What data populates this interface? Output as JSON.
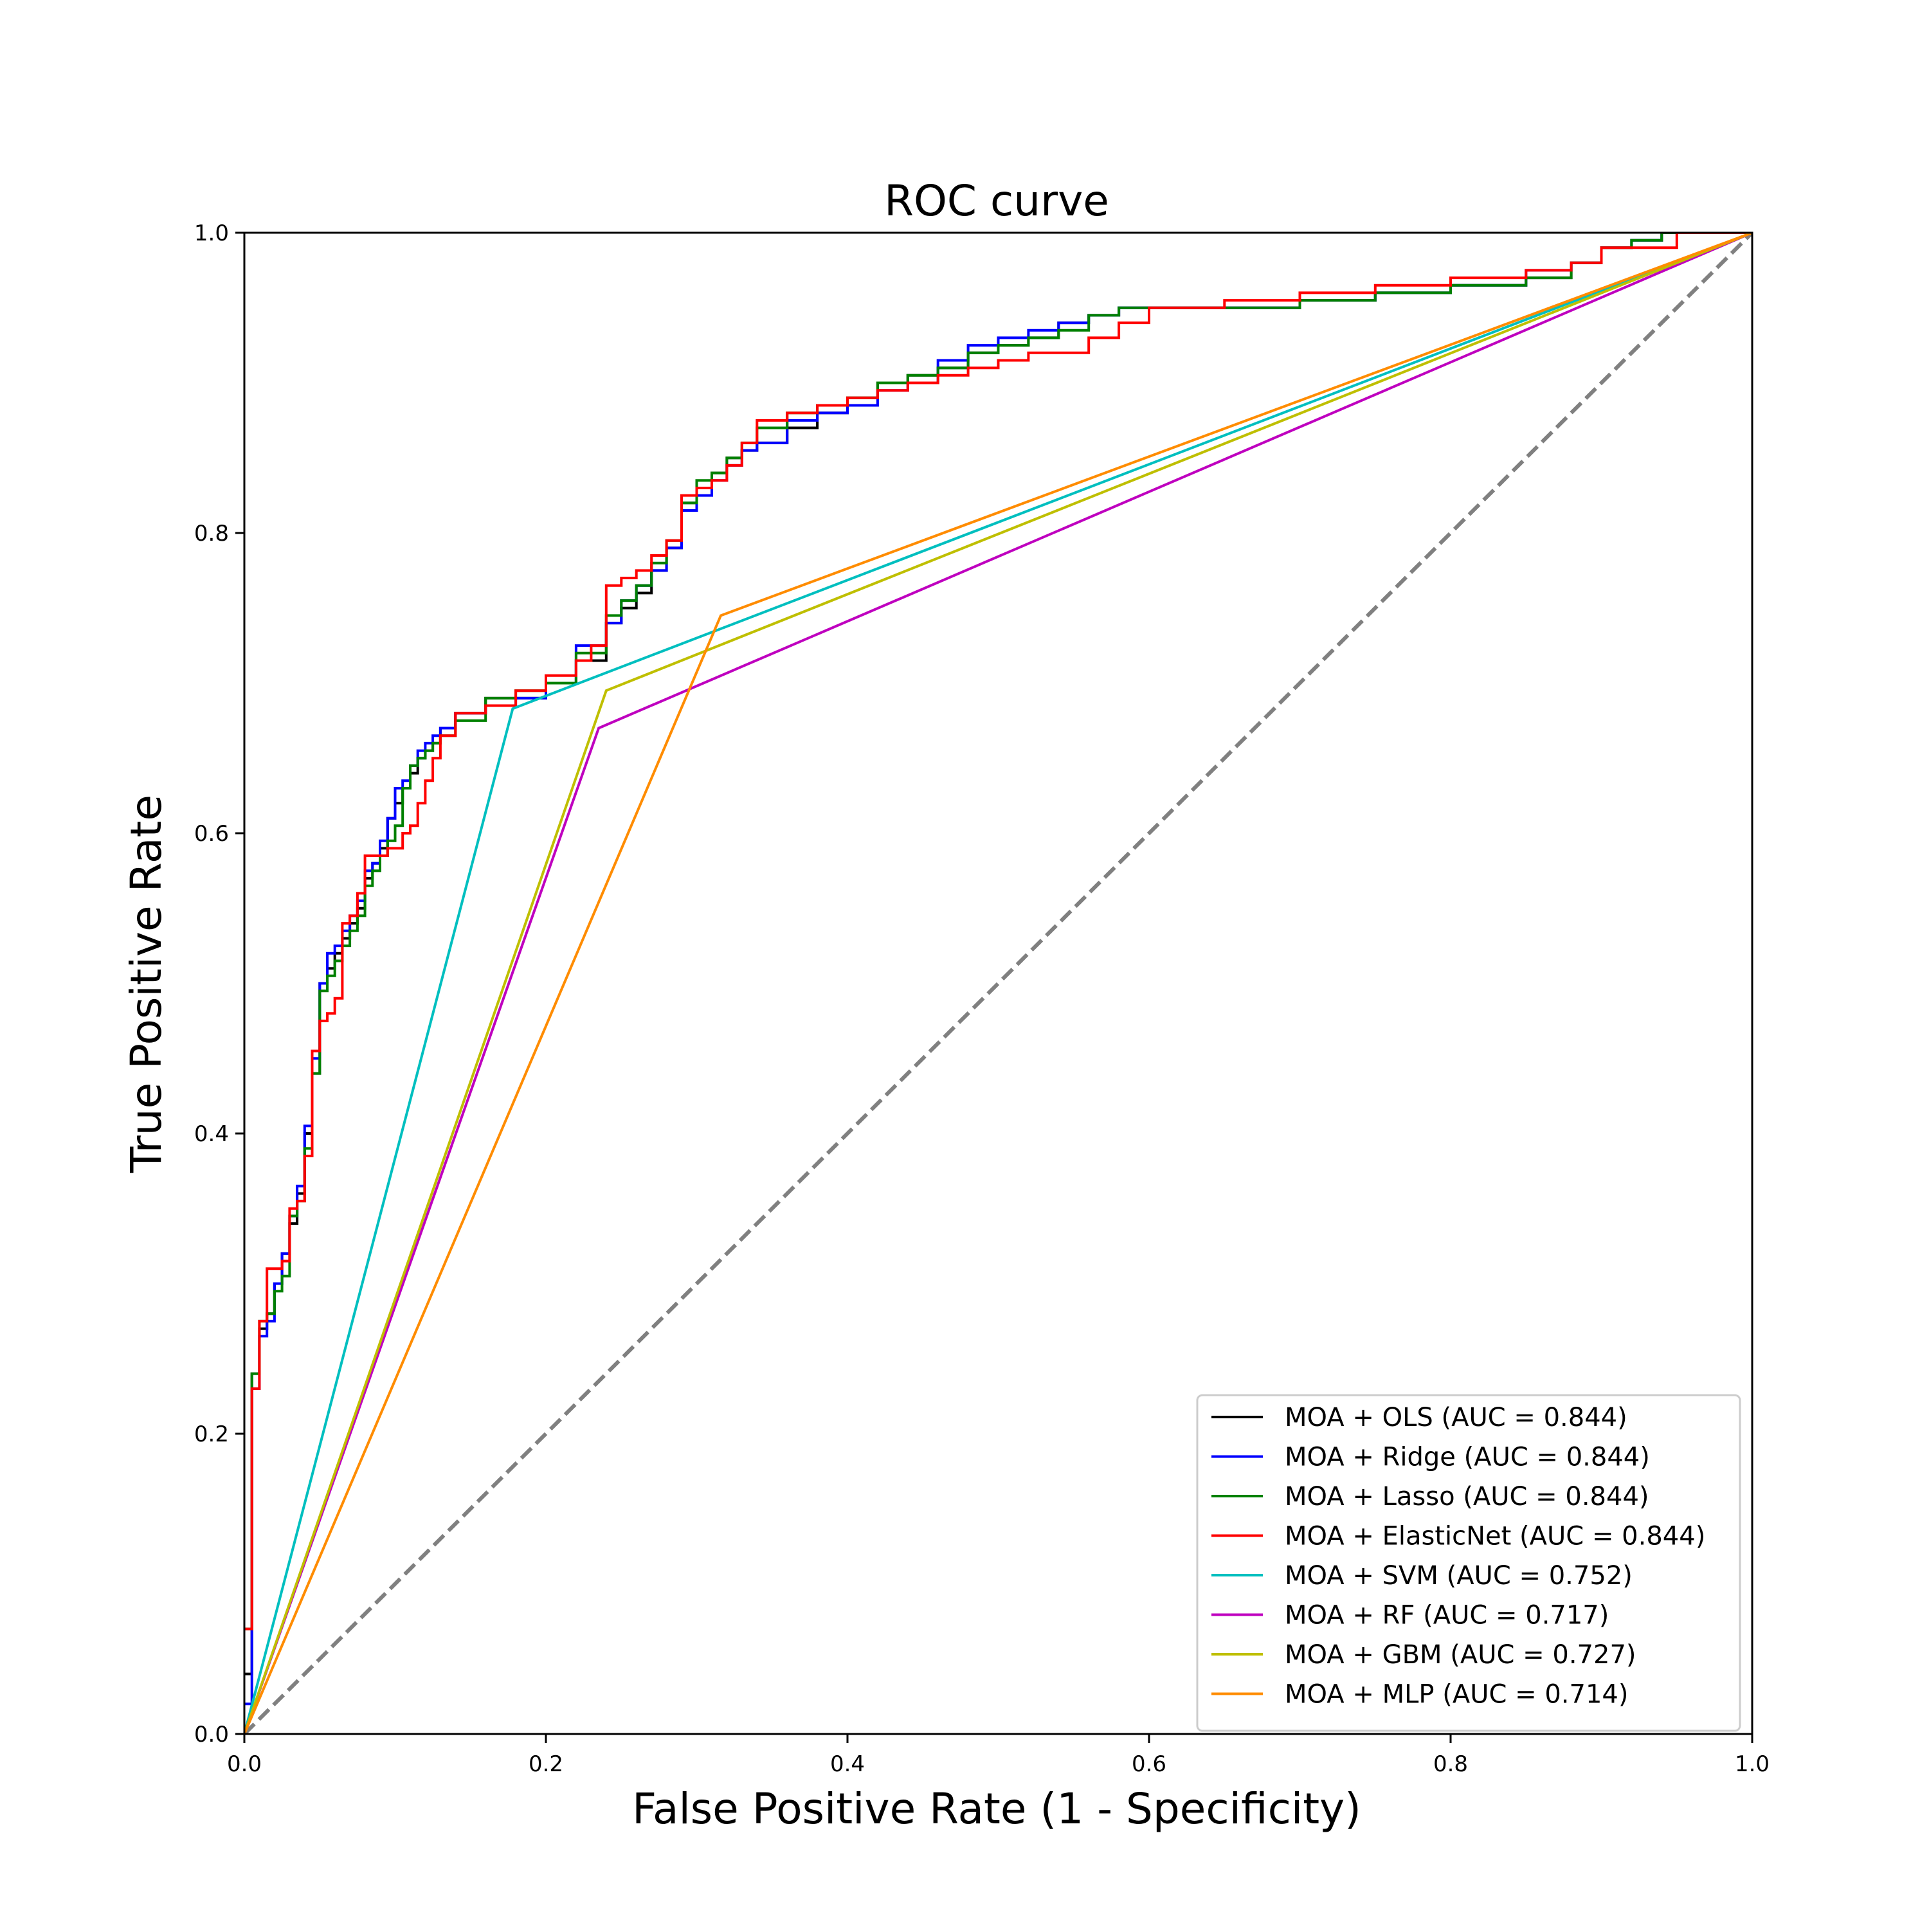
{
  "chart_data": {
    "type": "line",
    "title": "ROC curve",
    "xlabel": "False Positive Rate (1 - Specificity)",
    "ylabel": "True Positive Rate",
    "xlim": [
      0.0,
      1.0
    ],
    "ylim": [
      0.0,
      1.0
    ],
    "xticks": [
      "0.0",
      "0.2",
      "0.4",
      "0.6",
      "0.8",
      "1.0"
    ],
    "yticks": [
      "0.0",
      "0.2",
      "0.4",
      "0.6",
      "0.8",
      "1.0"
    ],
    "grid": false,
    "legend_position": "lower-right",
    "diagonal": {
      "x": [
        0,
        1
      ],
      "y": [
        0,
        1
      ],
      "color": "#808080",
      "style": "dashed"
    },
    "series": [
      {
        "name": "MOA + OLS (AUC = 0.844)",
        "color": "#000000",
        "step": true,
        "x": [
          0,
          0.005,
          0.01,
          0.015,
          0.02,
          0.025,
          0.03,
          0.035,
          0.04,
          0.045,
          0.05,
          0.055,
          0.06,
          0.065,
          0.07,
          0.075,
          0.08,
          0.085,
          0.09,
          0.095,
          0.1,
          0.105,
          0.11,
          0.115,
          0.12,
          0.125,
          0.13,
          0.14,
          0.16,
          0.18,
          0.2,
          0.22,
          0.24,
          0.25,
          0.26,
          0.27,
          0.28,
          0.29,
          0.3,
          0.31,
          0.32,
          0.33,
          0.34,
          0.36,
          0.38,
          0.4,
          0.42,
          0.44,
          0.46,
          0.48,
          0.5,
          0.52,
          0.54,
          0.56,
          0.58,
          0.6,
          0.65,
          0.7,
          0.75,
          0.8,
          0.85,
          0.88,
          0.9,
          0.92,
          0.94,
          1.0
        ],
        "y": [
          0.04,
          0.24,
          0.27,
          0.28,
          0.3,
          0.32,
          0.34,
          0.36,
          0.4,
          0.44,
          0.5,
          0.51,
          0.52,
          0.53,
          0.54,
          0.55,
          0.57,
          0.58,
          0.59,
          0.61,
          0.62,
          0.63,
          0.64,
          0.65,
          0.655,
          0.66,
          0.67,
          0.68,
          0.69,
          0.69,
          0.7,
          0.715,
          0.74,
          0.75,
          0.76,
          0.775,
          0.79,
          0.82,
          0.83,
          0.84,
          0.85,
          0.855,
          0.86,
          0.87,
          0.88,
          0.89,
          0.9,
          0.905,
          0.91,
          0.92,
          0.925,
          0.93,
          0.94,
          0.945,
          0.95,
          0.95,
          0.95,
          0.955,
          0.96,
          0.965,
          0.97,
          0.98,
          0.99,
          0.995,
          1.0,
          1.0
        ]
      },
      {
        "name": "MOA + Ridge (AUC = 0.844)",
        "color": "#0000ff",
        "step": true,
        "x": [
          0,
          0.005,
          0.01,
          0.015,
          0.02,
          0.025,
          0.03,
          0.035,
          0.04,
          0.045,
          0.05,
          0.055,
          0.06,
          0.065,
          0.07,
          0.075,
          0.08,
          0.085,
          0.09,
          0.095,
          0.1,
          0.105,
          0.11,
          0.115,
          0.12,
          0.125,
          0.13,
          0.14,
          0.16,
          0.18,
          0.2,
          0.22,
          0.24,
          0.25,
          0.26,
          0.27,
          0.28,
          0.29,
          0.3,
          0.31,
          0.32,
          0.33,
          0.34,
          0.36,
          0.38,
          0.4,
          0.42,
          0.44,
          0.46,
          0.48,
          0.5,
          0.52,
          0.54,
          0.56,
          0.58,
          0.6,
          0.65,
          0.7,
          0.75,
          0.8,
          0.85,
          0.88,
          0.9,
          0.92,
          0.94,
          1.0
        ],
        "y": [
          0.02,
          0.23,
          0.265,
          0.275,
          0.3,
          0.32,
          0.345,
          0.365,
          0.405,
          0.45,
          0.5,
          0.52,
          0.525,
          0.535,
          0.545,
          0.555,
          0.575,
          0.58,
          0.595,
          0.61,
          0.63,
          0.635,
          0.645,
          0.655,
          0.66,
          0.665,
          0.67,
          0.68,
          0.685,
          0.69,
          0.7,
          0.725,
          0.74,
          0.755,
          0.765,
          0.775,
          0.79,
          0.815,
          0.825,
          0.835,
          0.845,
          0.855,
          0.86,
          0.875,
          0.88,
          0.885,
          0.895,
          0.9,
          0.915,
          0.925,
          0.93,
          0.935,
          0.94,
          0.945,
          0.95,
          0.95,
          0.95,
          0.955,
          0.96,
          0.965,
          0.975,
          0.98,
          0.99,
          0.995,
          1.0,
          1.0
        ]
      },
      {
        "name": "MOA + Lasso (AUC = 0.844)",
        "color": "#008000",
        "step": true,
        "x": [
          0,
          0.005,
          0.01,
          0.015,
          0.02,
          0.025,
          0.03,
          0.035,
          0.04,
          0.045,
          0.05,
          0.055,
          0.06,
          0.065,
          0.07,
          0.075,
          0.08,
          0.085,
          0.09,
          0.095,
          0.1,
          0.105,
          0.11,
          0.115,
          0.12,
          0.125,
          0.13,
          0.14,
          0.16,
          0.18,
          0.2,
          0.22,
          0.24,
          0.25,
          0.26,
          0.27,
          0.28,
          0.29,
          0.3,
          0.31,
          0.32,
          0.33,
          0.34,
          0.36,
          0.38,
          0.4,
          0.42,
          0.44,
          0.46,
          0.48,
          0.5,
          0.52,
          0.54,
          0.56,
          0.58,
          0.6,
          0.65,
          0.7,
          0.75,
          0.8,
          0.85,
          0.88,
          0.9,
          0.92,
          0.94,
          1.0
        ],
        "y": [
          0.07,
          0.24,
          0.275,
          0.28,
          0.295,
          0.305,
          0.345,
          0.355,
          0.39,
          0.44,
          0.495,
          0.505,
          0.515,
          0.525,
          0.535,
          0.545,
          0.565,
          0.575,
          0.585,
          0.595,
          0.605,
          0.63,
          0.645,
          0.65,
          0.655,
          0.66,
          0.665,
          0.675,
          0.69,
          0.695,
          0.7,
          0.72,
          0.745,
          0.755,
          0.765,
          0.78,
          0.795,
          0.82,
          0.835,
          0.84,
          0.85,
          0.86,
          0.87,
          0.88,
          0.885,
          0.89,
          0.9,
          0.905,
          0.91,
          0.92,
          0.925,
          0.93,
          0.935,
          0.945,
          0.95,
          0.95,
          0.95,
          0.955,
          0.96,
          0.965,
          0.97,
          0.98,
          0.99,
          0.995,
          1.0,
          1.0
        ]
      },
      {
        "name": "MOA + ElasticNet (AUC = 0.844)",
        "color": "#ff0000",
        "step": true,
        "x": [
          0,
          0.005,
          0.01,
          0.015,
          0.02,
          0.025,
          0.03,
          0.035,
          0.04,
          0.045,
          0.05,
          0.055,
          0.06,
          0.065,
          0.07,
          0.075,
          0.08,
          0.085,
          0.09,
          0.095,
          0.1,
          0.105,
          0.11,
          0.115,
          0.12,
          0.125,
          0.13,
          0.14,
          0.16,
          0.18,
          0.2,
          0.22,
          0.23,
          0.24,
          0.25,
          0.26,
          0.27,
          0.28,
          0.29,
          0.3,
          0.31,
          0.32,
          0.33,
          0.34,
          0.36,
          0.38,
          0.4,
          0.42,
          0.44,
          0.46,
          0.48,
          0.5,
          0.52,
          0.54,
          0.56,
          0.58,
          0.6,
          0.65,
          0.7,
          0.75,
          0.8,
          0.85,
          0.88,
          0.9,
          0.92,
          0.94,
          0.95,
          1.0
        ],
        "y": [
          0.07,
          0.23,
          0.275,
          0.31,
          0.31,
          0.315,
          0.35,
          0.355,
          0.385,
          0.455,
          0.475,
          0.48,
          0.49,
          0.54,
          0.545,
          0.56,
          0.585,
          0.585,
          0.585,
          0.59,
          0.59,
          0.6,
          0.605,
          0.62,
          0.635,
          0.65,
          0.665,
          0.68,
          0.685,
          0.695,
          0.705,
          0.715,
          0.725,
          0.765,
          0.77,
          0.775,
          0.785,
          0.795,
          0.825,
          0.83,
          0.835,
          0.845,
          0.86,
          0.875,
          0.88,
          0.885,
          0.89,
          0.895,
          0.9,
          0.905,
          0.91,
          0.915,
          0.92,
          0.92,
          0.93,
          0.94,
          0.95,
          0.955,
          0.96,
          0.965,
          0.97,
          0.975,
          0.98,
          0.99,
          0.99,
          0.99,
          1.0,
          1.0
        ]
      },
      {
        "name": "MOA + SVM (AUC = 0.752)",
        "color": "#00bfbf",
        "step": false,
        "x": [
          0,
          0.178,
          1.0
        ],
        "y": [
          0,
          0.683,
          1.0
        ]
      },
      {
        "name": "MOA + RF (AUC = 0.717)",
        "color": "#bf00bf",
        "step": false,
        "x": [
          0,
          0.235,
          1.0
        ],
        "y": [
          0,
          0.67,
          1.0
        ]
      },
      {
        "name": "MOA + GBM (AUC = 0.727)",
        "color": "#bfbf00",
        "step": false,
        "x": [
          0,
          0.24,
          1.0
        ],
        "y": [
          0,
          0.695,
          1.0
        ]
      },
      {
        "name": "MOA + MLP (AUC = 0.714)",
        "color": "#ff8c00",
        "step": false,
        "x": [
          0,
          0.316,
          1.0
        ],
        "y": [
          0,
          0.745,
          1.0
        ]
      }
    ]
  }
}
